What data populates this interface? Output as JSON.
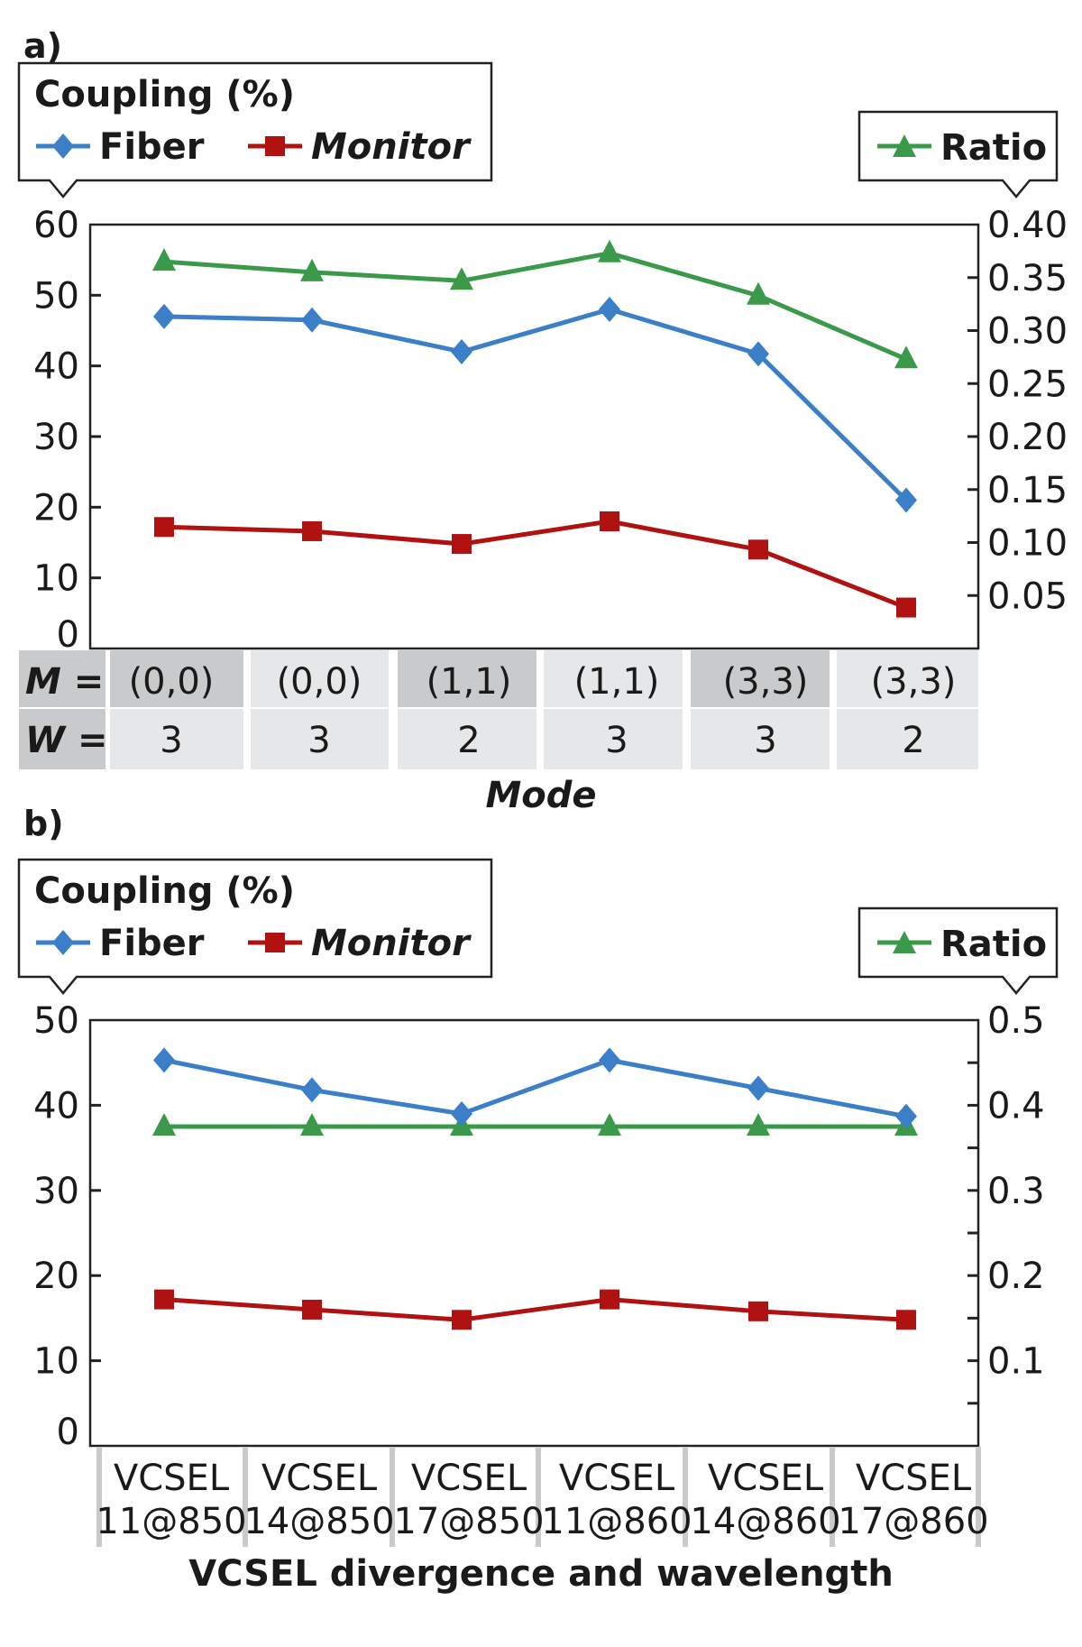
{
  "colors": {
    "fiber": "#3a7fc8",
    "monitor": "#b01212",
    "ratio": "#3a9a4a",
    "table_dark": "#c9cacb",
    "table_light": "#e6e7e8"
  },
  "chart_data": [
    {
      "type": "line",
      "panel_label": "a)",
      "legend_title": "Coupling (%)",
      "xlabel": "Mode",
      "row_labels": [
        "M =",
        "W ="
      ],
      "categories_m": [
        "(0,0)",
        "(0,0)",
        "(1,1)",
        "(1,1)",
        "(3,3)",
        "(3,3)"
      ],
      "categories_w": [
        "3",
        "3",
        "2",
        "3",
        "3",
        "2"
      ],
      "ylim_left": [
        0,
        60
      ],
      "yticks_left": [
        "0",
        "10",
        "20",
        "30",
        "40",
        "50",
        "60"
      ],
      "ylim_right": [
        0,
        0.4
      ],
      "yticks_right": [
        "0.05",
        "0.10",
        "0.15",
        "0.20",
        "0.25",
        "0.30",
        "0.35",
        "0.40"
      ],
      "series": [
        {
          "name": "Fiber",
          "axis": "left",
          "marker": "diamond",
          "values": [
            47,
            46.5,
            42,
            48,
            41.7,
            21
          ]
        },
        {
          "name": "Monitor",
          "axis": "left",
          "marker": "square",
          "values": [
            17.2,
            16.6,
            14.8,
            18,
            14,
            5.8
          ]
        },
        {
          "name": "Ratio",
          "axis": "right",
          "marker": "triangle",
          "values": [
            0.365,
            0.355,
            0.347,
            0.373,
            0.333,
            0.273
          ]
        }
      ]
    },
    {
      "type": "line",
      "panel_label": "b)",
      "legend_title": "Coupling (%)",
      "xlabel": "VCSEL divergence and wavelength",
      "categories_line1": [
        "VCSEL",
        "VCSEL",
        "VCSEL",
        "VCSEL",
        "VCSEL",
        "VCSEL"
      ],
      "categories_line2": [
        "11@850",
        "14@850",
        "17@850",
        "11@860",
        "14@860",
        "17@860"
      ],
      "ylim_left": [
        0,
        50
      ],
      "yticks_left": [
        "0",
        "10",
        "20",
        "30",
        "40",
        "50"
      ],
      "ylim_right": [
        0,
        0.5
      ],
      "yticks_right": [
        "0.1",
        "0.2",
        "0.3",
        "0.4",
        "0.5"
      ],
      "series": [
        {
          "name": "Fiber",
          "axis": "left",
          "marker": "diamond",
          "values": [
            45.3,
            41.8,
            39,
            45.3,
            42,
            38.7
          ]
        },
        {
          "name": "Monitor",
          "axis": "left",
          "marker": "square",
          "values": [
            17.2,
            16,
            14.8,
            17.2,
            15.8,
            14.8
          ]
        },
        {
          "name": "Ratio",
          "axis": "right",
          "marker": "triangle",
          "values": [
            0.375,
            0.375,
            0.375,
            0.375,
            0.375,
            0.375
          ]
        }
      ]
    }
  ]
}
